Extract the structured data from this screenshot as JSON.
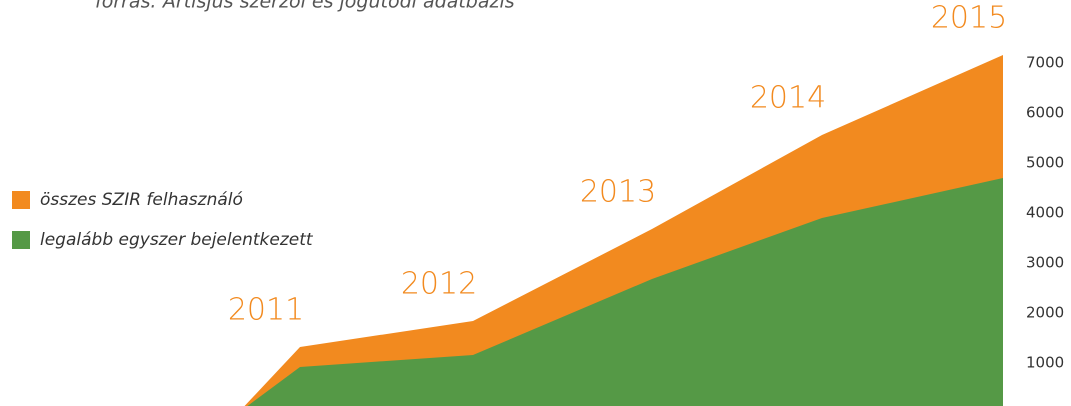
{
  "chart_data": {
    "type": "area",
    "subtitle": "forrás: Artisjus szerzői és jogutódi adatbázis",
    "categories": [
      null,
      "2011",
      "2012",
      "2013",
      "2014",
      "2015"
    ],
    "series": [
      {
        "name": "összes SZIR felhasználó",
        "color": "#f28a1f",
        "values": [
          0,
          1320,
          1840,
          3680,
          5560,
          7160
        ]
      },
      {
        "name": "legalább egyszer bejelentkezett",
        "color": "#559946",
        "values": [
          0,
          920,
          1160,
          2680,
          3900,
          4700
        ]
      }
    ],
    "ylim": [
      0,
      8000
    ],
    "yticks": [
      1000,
      2000,
      3000,
      4000,
      5000,
      6000,
      7000
    ]
  }
}
